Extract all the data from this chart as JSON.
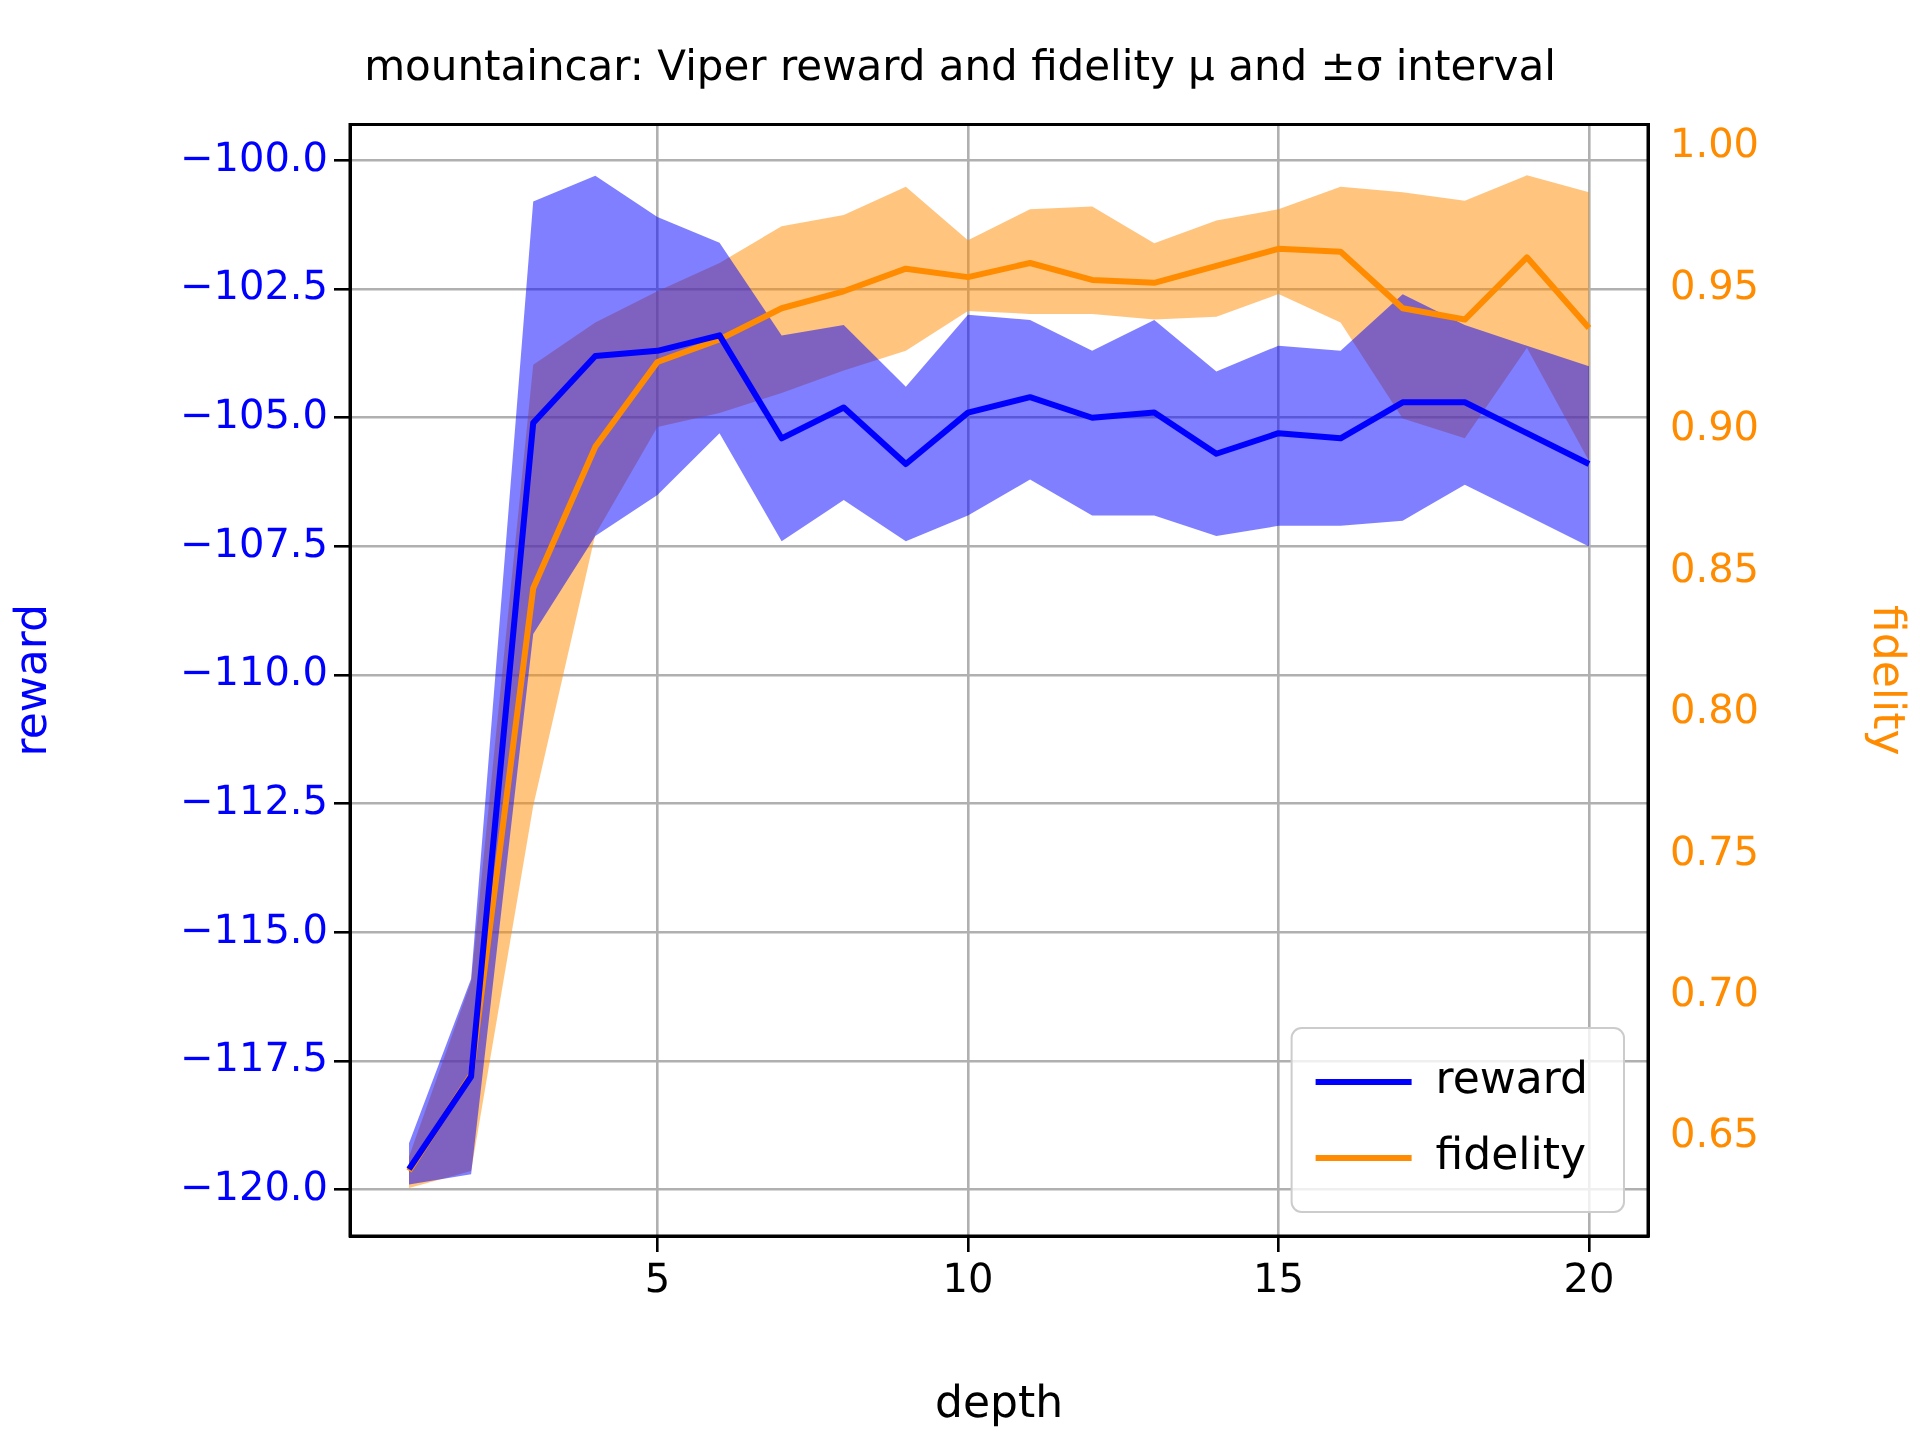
{
  "chart_data": {
    "type": "line",
    "title": "mountaincar: Viper reward and fidelity μ and ±σ interval",
    "xlabel": "depth",
    "ylabel": "reward",
    "y2label": "fidelity",
    "x": [
      1,
      2,
      3,
      4,
      5,
      6,
      7,
      8,
      9,
      10,
      11,
      12,
      13,
      14,
      15,
      16,
      17,
      18,
      19,
      20
    ],
    "series": [
      {
        "name": "reward",
        "color": "#0000ff",
        "axis": "y",
        "values": [
          -119.6,
          -117.8,
          -105.1,
          -103.8,
          -103.7,
          -103.4,
          -105.4,
          -104.8,
          -105.9,
          -104.9,
          -104.6,
          -105.0,
          -104.9,
          -105.7,
          -105.3,
          -105.4,
          -104.7,
          -104.7,
          -105.3,
          -105.9
        ],
        "upper": [
          -119.1,
          -115.9,
          -100.8,
          -100.3,
          -101.1,
          -101.6,
          -103.4,
          -103.2,
          -104.4,
          -103.0,
          -103.1,
          -103.7,
          -103.1,
          -104.1,
          -103.6,
          -103.7,
          -102.6,
          -103.2,
          -103.6,
          -104.0
        ],
        "lower": [
          -119.9,
          -119.7,
          -109.2,
          -107.3,
          -106.5,
          -105.3,
          -107.4,
          -106.6,
          -107.4,
          -106.9,
          -106.2,
          -106.9,
          -106.9,
          -107.3,
          -107.1,
          -107.1,
          -107.0,
          -106.3,
          -106.9,
          -107.5
        ]
      },
      {
        "name": "fidelity",
        "color": "#ff8c00",
        "axis": "y2",
        "values": [
          0.638,
          0.672,
          0.844,
          0.894,
          0.924,
          0.932,
          0.943,
          0.949,
          0.957,
          0.954,
          0.959,
          0.953,
          0.952,
          0.958,
          0.964,
          0.963,
          0.943,
          0.939,
          0.961,
          0.936
        ],
        "upper": [
          0.643,
          0.705,
          0.923,
          0.938,
          0.949,
          0.959,
          0.972,
          0.976,
          0.986,
          0.967,
          0.978,
          0.979,
          0.966,
          0.974,
          0.978,
          0.986,
          0.984,
          0.981,
          0.99,
          0.984
        ],
        "lower": [
          0.632,
          0.638,
          0.767,
          0.863,
          0.901,
          0.906,
          0.913,
          0.921,
          0.928,
          0.942,
          0.941,
          0.941,
          0.939,
          0.94,
          0.948,
          0.938,
          0.904,
          0.897,
          0.929,
          0.889
        ]
      }
    ],
    "xlim": [
      0.05,
      20.95
    ],
    "xticks": [
      5,
      10,
      15,
      20
    ],
    "ylim": [
      -120.9,
      -99.3
    ],
    "yticks": [
      {
        "value": -120,
        "label": "−120.0"
      },
      {
        "value": -117.5,
        "label": "−117.5"
      },
      {
        "value": -115,
        "label": "−115.0"
      },
      {
        "value": -112.5,
        "label": "−112.5"
      },
      {
        "value": -110,
        "label": "−110.0"
      },
      {
        "value": -107.5,
        "label": "−107.5"
      },
      {
        "value": -105,
        "label": "−105.0"
      },
      {
        "value": -102.5,
        "label": "−102.5"
      },
      {
        "value": -100,
        "label": "−100.0"
      }
    ],
    "y2lim": [
      0.615,
      1.008
    ],
    "y2ticks": [
      0.65,
      {
        "value": 0.7,
        "label": "0.70"
      },
      0.75,
      {
        "value": 0.8,
        "label": "0.80"
      },
      0.85,
      {
        "value": 0.9,
        "label": "0.90"
      },
      0.95,
      {
        "value": 1.0,
        "label": "1.00"
      }
    ],
    "grid": true,
    "legend": "bottom right",
    "marker": "none",
    "line_style": "solid"
  }
}
